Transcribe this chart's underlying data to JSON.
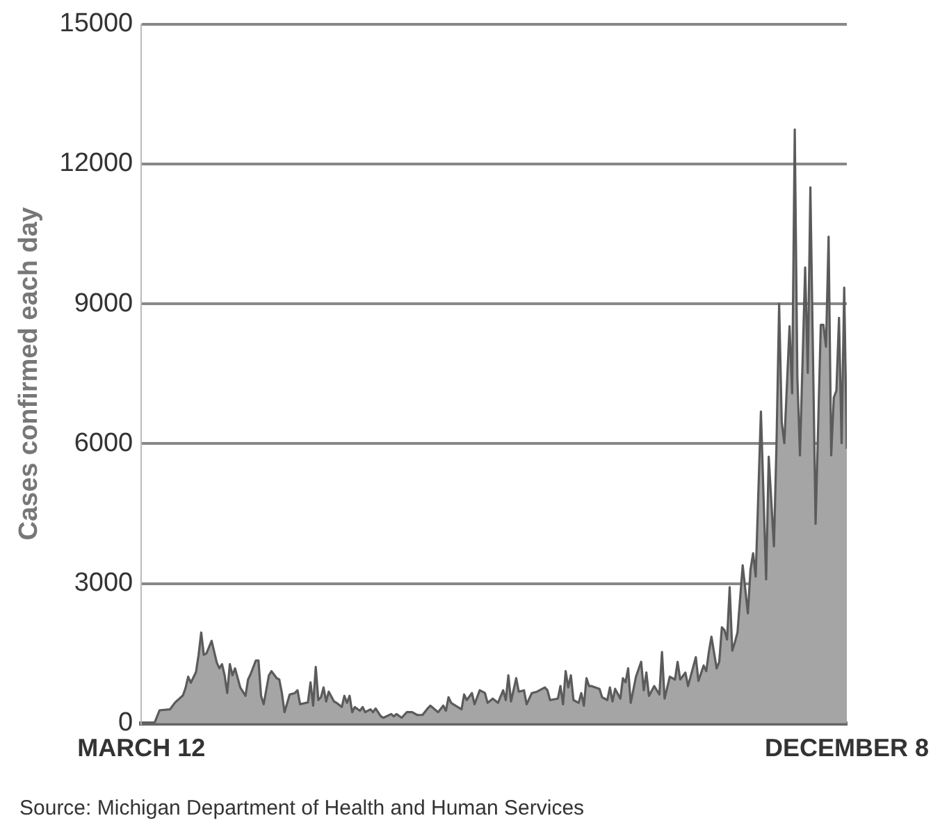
{
  "chart_data": {
    "type": "area",
    "ylabel": "Cases confirmed each day",
    "annotations": [
      "Source: Michigan Department of Health and Human Services"
    ],
    "x": [
      "--03-12",
      "--03-17",
      "--03-19",
      "--03-23",
      "--03-25",
      "--03-28",
      "--03-29",
      "--03-30",
      "--03-31",
      "--04-02",
      "--04-03",
      "--04-04",
      "--04-05",
      "--04-06",
      "--04-08",
      "--04-10",
      "--04-11",
      "--04-12",
      "--04-13",
      "--04-14",
      "--04-15",
      "--04-16",
      "--04-17",
      "--04-19",
      "--04-20",
      "--04-21",
      "--04-22",
      "--04-23",
      "--04-25",
      "--04-26",
      "--04-27",
      "--04-28",
      "--04-30",
      "--05-01",
      "--05-03",
      "--05-04",
      "--05-05",
      "--05-06",
      "--05-08",
      "--05-10",
      "--05-11",
      "--05-12",
      "--05-15",
      "--05-16",
      "--05-17",
      "--05-18",
      "--05-19",
      "--05-20",
      "--05-21",
      "--05-22",
      "--05-23",
      "--05-25",
      "--05-26",
      "--05-28",
      "--05-29",
      "--05-30",
      "--05-31",
      "--06-01",
      "--06-02",
      "--06-04",
      "--06-05",
      "--06-06",
      "--06-08",
      "--06-09",
      "--06-10",
      "--06-12",
      "--06-13",
      "--06-16",
      "--06-17",
      "--06-18",
      "--06-20",
      "--06-22",
      "--06-24",
      "--06-26",
      "--06-28",
      "--06-30",
      "--07-01",
      "--07-04",
      "--07-06",
      "--07-07",
      "--07-08",
      "--07-09",
      "--07-13",
      "--07-14",
      "--07-15",
      "--07-17",
      "--07-18",
      "--07-20",
      "--07-21",
      "--07-22",
      "--07-23",
      "--07-25",
      "--07-27",
      "--07-29",
      "--07-30",
      "--07-31",
      "--08-01",
      "--08-03",
      "--08-04",
      "--08-06",
      "--08-07",
      "--08-09",
      "--08-11",
      "--08-14",
      "--08-15",
      "--08-16",
      "--08-19",
      "--08-20",
      "--08-21",
      "--08-22",
      "--08-23",
      "--08-24",
      "--08-25",
      "--08-27",
      "--08-28",
      "--08-29",
      "--08-30",
      "--08-31",
      "--09-01",
      "--09-04",
      "--09-05",
      "--09-07",
      "--09-08",
      "--09-09",
      "--09-10",
      "--09-12",
      "--09-13",
      "--09-14",
      "--09-15",
      "--09-16",
      "--09-18",
      "--09-20",
      "--09-21",
      "--09-22",
      "--09-23",
      "--09-25",
      "--09-27",
      "--09-28",
      "--09-29",
      "--10-01",
      "--10-03",
      "--10-04",
      "--10-05",
      "--10-07",
      "--10-08",
      "--10-11",
      "--10-12",
      "--10-14",
      "--10-15",
      "--10-16",
      "--10-17",
      "--10-19",
      "--10-20",
      "--10-21",
      "--10-22",
      "--10-23",
      "--10-24",
      "--10-25",
      "--10-26",
      "--10-27",
      "--10-29",
      "--10-31",
      "--11-01",
      "--11-02",
      "--11-03",
      "--11-05",
      "--11-07",
      "--11-08",
      "--11-10",
      "--11-11",
      "--11-12",
      "--11-13",
      "--11-14",
      "--11-16",
      "--11-17",
      "--11-18",
      "--11-19",
      "--11-20",
      "--11-22",
      "--11-23",
      "--11-24",
      "--11-26",
      "--11-28",
      "--11-29",
      "--11-30",
      "--12-01",
      "--12-02",
      "--12-03",
      "--12-04",
      "--12-05",
      "--12-06",
      "--12-07",
      "--12-08"
    ],
    "series": [
      {
        "color": "#a5a5a5",
        "values": [
          0,
          0,
          280,
          300,
          450,
          600,
          760,
          1000,
          870,
          1100,
          1470,
          1950,
          1470,
          1500,
          1770,
          1300,
          1180,
          1270,
          1030,
          650,
          1270,
          1030,
          1180,
          770,
          680,
          590,
          940,
          1060,
          1350,
          1350,
          590,
          410,
          1030,
          1120,
          970,
          940,
          650,
          240,
          620,
          650,
          710,
          410,
          450,
          880,
          380,
          1210,
          500,
          560,
          770,
          470,
          680,
          470,
          440,
          350,
          590,
          440,
          590,
          240,
          350,
          270,
          350,
          240,
          300,
          240,
          320,
          150,
          120,
          200,
          150,
          200,
          120,
          240,
          240,
          180,
          180,
          320,
          380,
          240,
          380,
          270,
          560,
          440,
          300,
          620,
          500,
          650,
          410,
          710,
          680,
          650,
          440,
          530,
          440,
          710,
          500,
          1030,
          470,
          970,
          680,
          710,
          410,
          650,
          680,
          770,
          710,
          500,
          530,
          800,
          410,
          1120,
          770,
          1030,
          500,
          440,
          650,
          380,
          970,
          800,
          800,
          740,
          560,
          500,
          770,
          470,
          740,
          530,
          970,
          880,
          1180,
          440,
          1000,
          1320,
          710,
          1090,
          590,
          800,
          620,
          1530,
          530,
          1000,
          940,
          1320,
          940,
          1090,
          800,
          1420,
          910,
          1240,
          1120,
          1530,
          1860,
          1180,
          1320,
          2060,
          2000,
          1800,
          2920,
          1560,
          1740,
          1950,
          3390,
          2360,
          3300,
          3650,
          3150,
          6690,
          3090,
          5720,
          3800,
          6010,
          9000,
          6460,
          6010,
          8520,
          7080,
          12740,
          7430,
          5750,
          9780,
          7520,
          11500,
          4280,
          8550,
          8550,
          8080,
          10440,
          5750,
          6990,
          7140,
          8700,
          6010,
          9350,
          5890
        ]
      }
    ],
    "xlim": [
      "--03-12",
      "--12-08"
    ],
    "xticks": [
      {
        "value": "--03-12",
        "label": "MARCH 12"
      },
      {
        "value": "--12-08",
        "label": "DECEMBER 8"
      }
    ],
    "ylim": [
      0,
      15000
    ],
    "yticks": [
      0,
      3000,
      6000,
      9000,
      12000,
      15000
    ],
    "grid": "y",
    "legend": false
  }
}
